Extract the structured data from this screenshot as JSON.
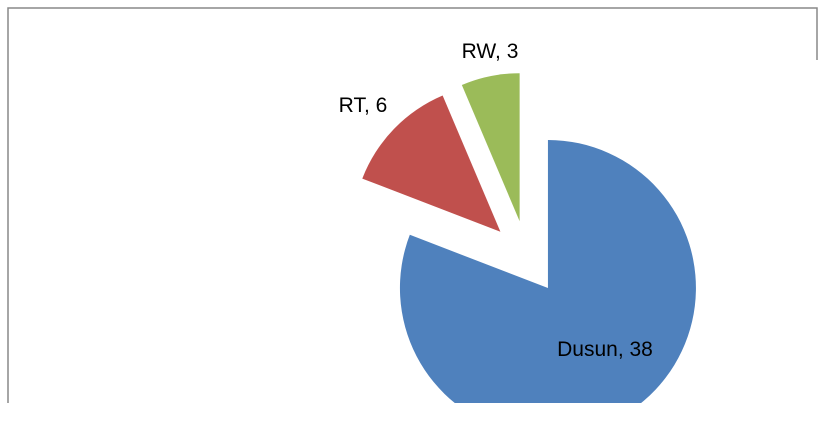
{
  "chart_data": {
    "type": "pie",
    "values": [
      38,
      6,
      3
    ],
    "value_labels": [
      "Dusun, 38",
      "RT, 6",
      "RW, 3"
    ],
    "colors": [
      "#4f81bd",
      "#c0504d",
      "#9bbb59"
    ]
  }
}
